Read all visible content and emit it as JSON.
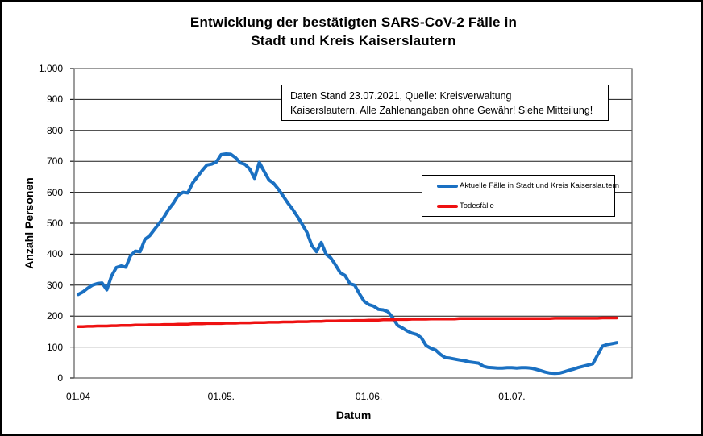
{
  "window": {
    "background": "#ffffff",
    "border_color": "#000000"
  },
  "title": {
    "line1": "Entwicklung der bestätigten SARS-CoV-2 Fälle in",
    "line2": "Stadt und Kreis Kaiserslautern"
  },
  "annotation": {
    "line1": "Daten Stand 23.07.2021, Quelle: Kreisverwaltung",
    "line2": "Kaiserslautern. Alle Zahlenangaben ohne Gewähr! Siehe Mitteilung!"
  },
  "chart_data": {
    "type": "line",
    "title": "Entwicklung der bestätigten SARS-CoV-2 Fälle in Stadt und Kreis Kaiserslautern",
    "xlabel": "Datum",
    "ylabel": "Anzahl Personen",
    "ylim": [
      0,
      1000
    ],
    "ytick_step": 100,
    "grid": "horizontal",
    "legend_position": "inside-right",
    "x_description": "tägliche Werte, 01.04.2021 bis 23.07.2021",
    "y_ticks": [
      {
        "v": 0,
        "label": "0"
      },
      {
        "v": 100,
        "label": "100"
      },
      {
        "v": 200,
        "label": "200"
      },
      {
        "v": 300,
        "label": "300"
      },
      {
        "v": 400,
        "label": "400"
      },
      {
        "v": 500,
        "label": "500"
      },
      {
        "v": 600,
        "label": "600"
      },
      {
        "v": 700,
        "label": "700"
      },
      {
        "v": 800,
        "label": "800"
      },
      {
        "v": 900,
        "label": "900"
      },
      {
        "v": 1000,
        "label": "1.000"
      }
    ],
    "x_ticks": [
      {
        "index": 0,
        "label": "01.04"
      },
      {
        "index": 30,
        "label": "01.05."
      },
      {
        "index": 61,
        "label": "01.06."
      },
      {
        "index": 91,
        "label": "01.07."
      }
    ],
    "series": [
      {
        "name": "Aktuelle Fälle in Stadt und Kreis Kaiserslautern",
        "color": "#1a70c2",
        "stroke_width": 4,
        "values": [
          270,
          278,
          290,
          300,
          305,
          307,
          285,
          330,
          357,
          362,
          358,
          395,
          410,
          408,
          448,
          460,
          480,
          500,
          520,
          545,
          565,
          590,
          600,
          598,
          630,
          650,
          670,
          688,
          691,
          698,
          722,
          724,
          723,
          712,
          695,
          690,
          675,
          645,
          697,
          668,
          640,
          629,
          610,
          588,
          565,
          545,
          522,
          497,
          470,
          428,
          408,
          438,
          400,
          388,
          365,
          340,
          331,
          305,
          300,
          272,
          248,
          237,
          232,
          222,
          220,
          214,
          195,
          170,
          162,
          152,
          145,
          141,
          130,
          105,
          96,
          90,
          76,
          66,
          64,
          61,
          58,
          56,
          52,
          50,
          48,
          38,
          34,
          33,
          32,
          32,
          33,
          33,
          32,
          33,
          33,
          32,
          28,
          24,
          19,
          16,
          15,
          16,
          20,
          25,
          29,
          34,
          38,
          42,
          46,
          75,
          103,
          108,
          111,
          114
        ]
      },
      {
        "name": "Todesfälle",
        "color": "#ee1111",
        "stroke_width": 3.5,
        "values": [
          166,
          166,
          167,
          167,
          168,
          168,
          168,
          169,
          169,
          170,
          170,
          170,
          171,
          171,
          171,
          172,
          172,
          172,
          173,
          173,
          173,
          174,
          174,
          174,
          175,
          175,
          175,
          176,
          176,
          176,
          176,
          177,
          177,
          177,
          178,
          178,
          178,
          179,
          179,
          179,
          180,
          180,
          180,
          181,
          181,
          181,
          182,
          182,
          182,
          183,
          183,
          183,
          184,
          184,
          184,
          185,
          185,
          185,
          186,
          186,
          186,
          187,
          187,
          187,
          188,
          188,
          188,
          189,
          189,
          189,
          190,
          190,
          190,
          190,
          191,
          191,
          191,
          191,
          191,
          191,
          192,
          192,
          192,
          192,
          192,
          192,
          192,
          192,
          192,
          192,
          192,
          192,
          192,
          192,
          192,
          192,
          192,
          192,
          192,
          192,
          193,
          193,
          193,
          193,
          193,
          193,
          193,
          193,
          193,
          193,
          194,
          194,
          194,
          194
        ]
      }
    ]
  }
}
